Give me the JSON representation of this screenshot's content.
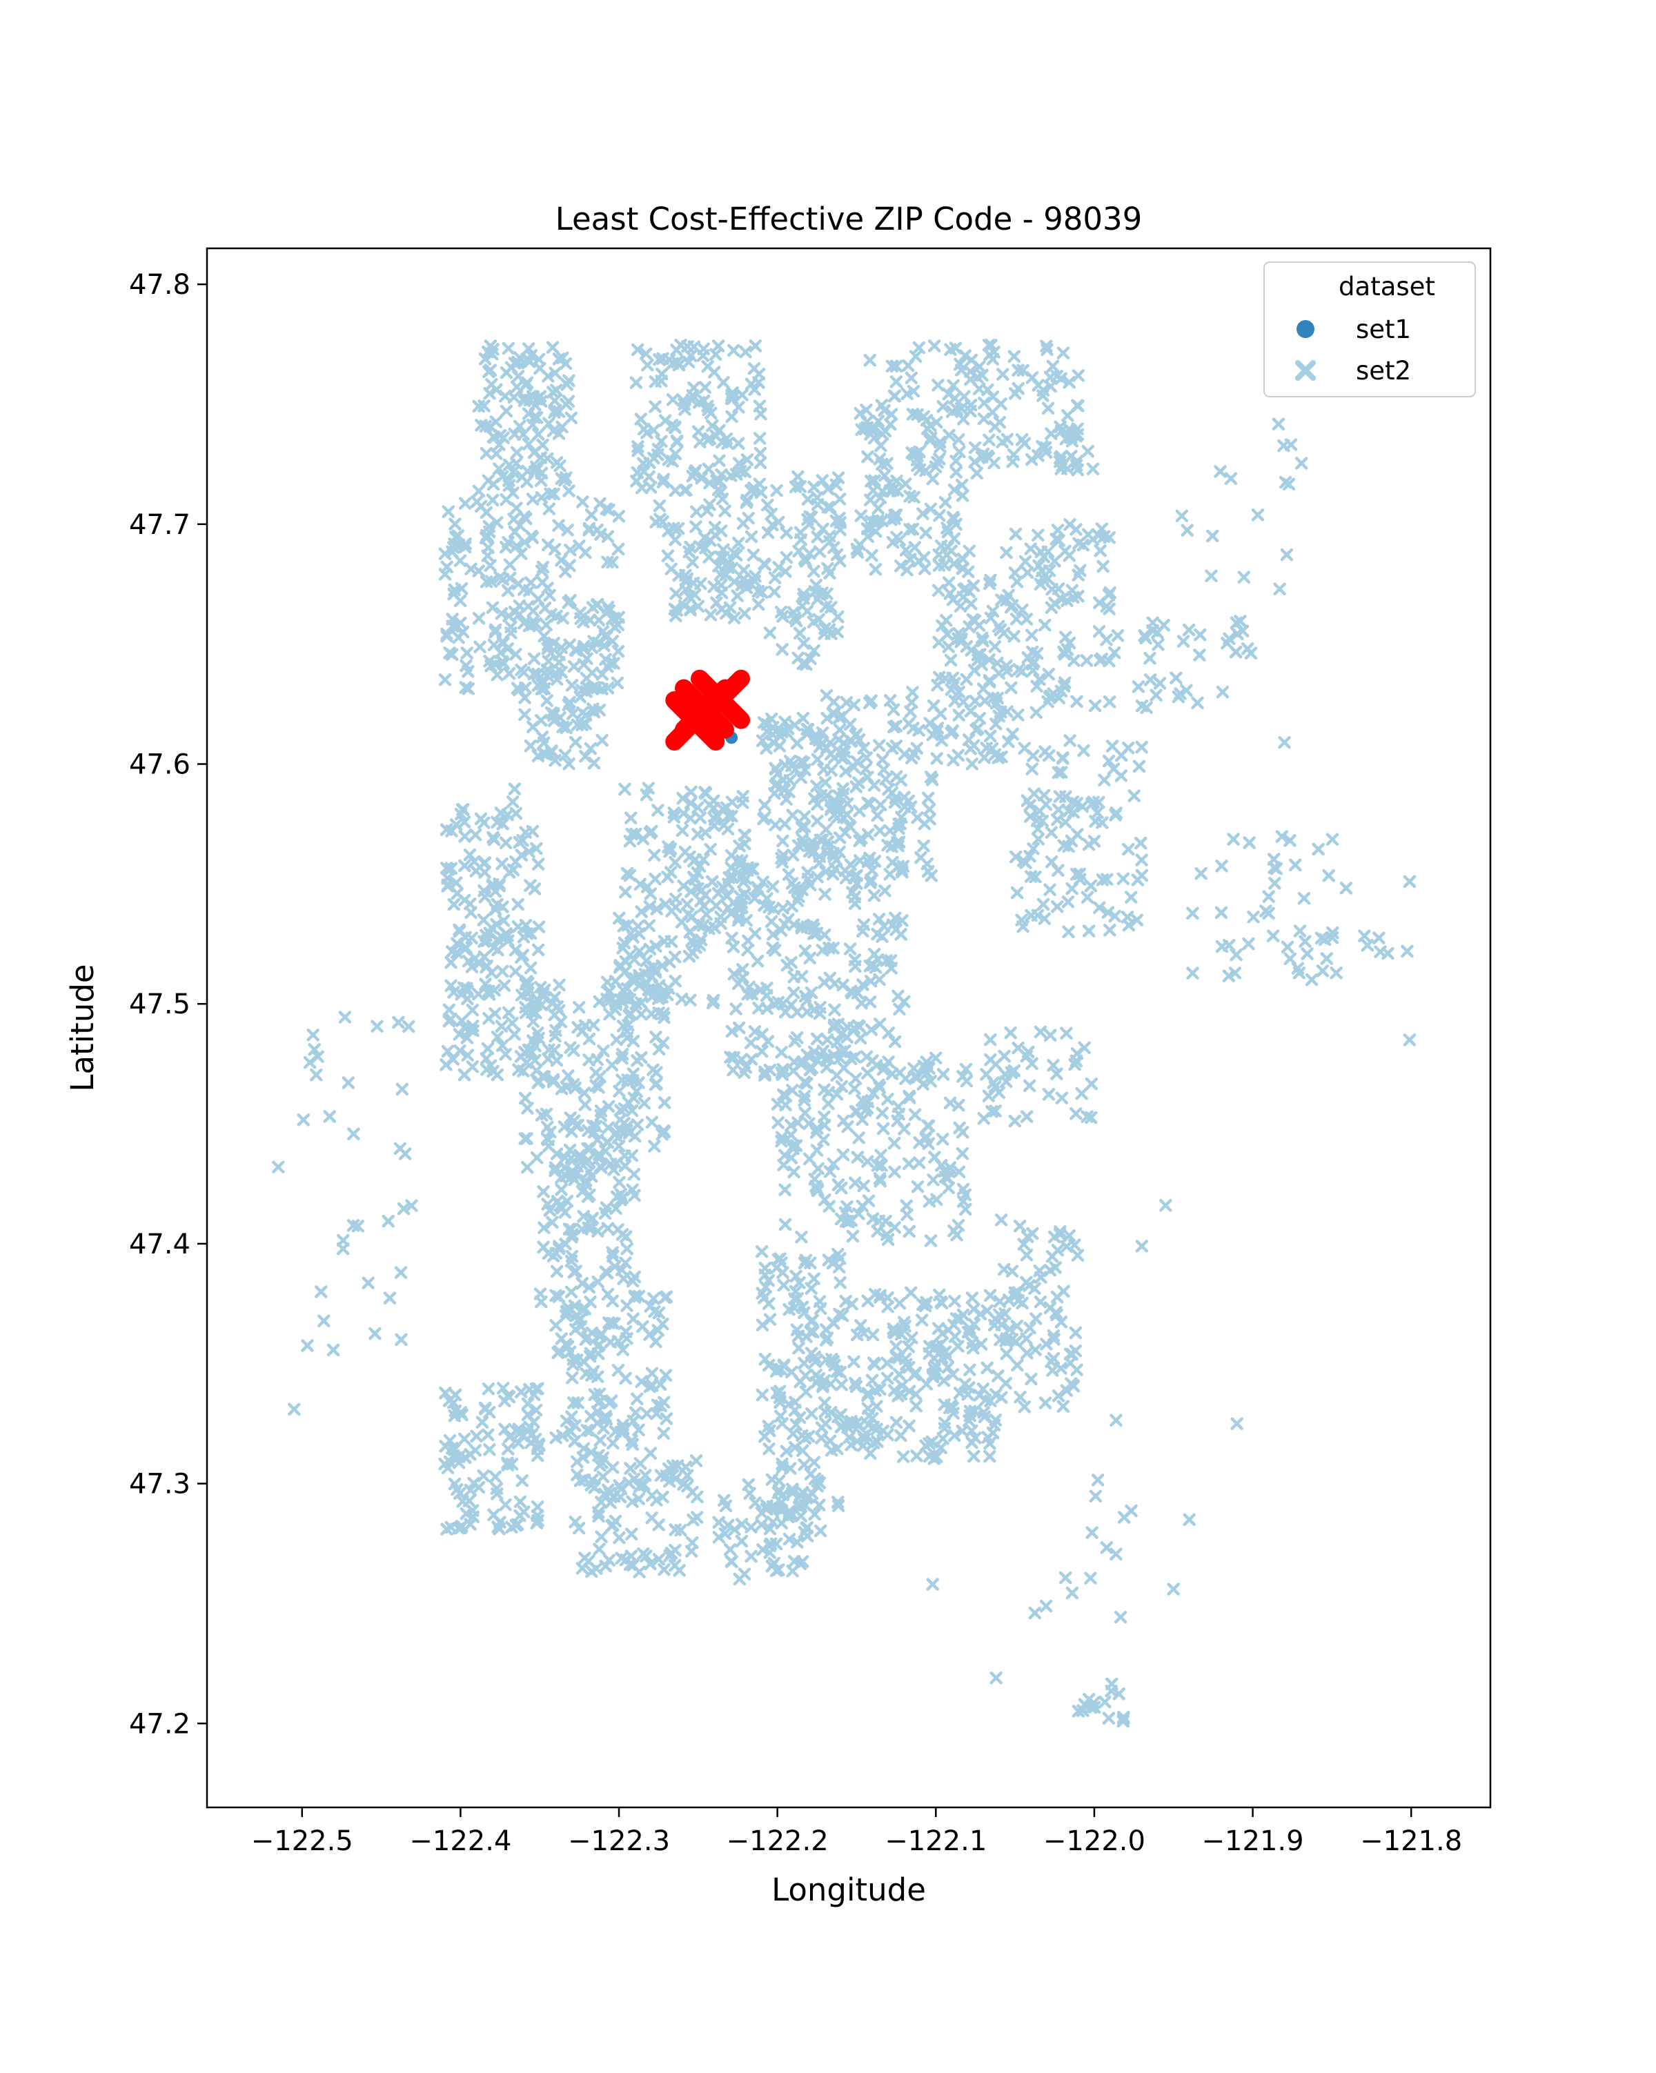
{
  "chart_data": {
    "type": "scatter",
    "title": "Least Cost-Effective ZIP Code - 98039",
    "xlabel": "Longitude",
    "ylabel": "Latitude",
    "xlim": [
      -122.56,
      -121.75
    ],
    "ylim": [
      47.165,
      47.815
    ],
    "xticks": [
      -122.5,
      -122.4,
      -122.3,
      -122.2,
      -122.1,
      -122.0,
      -121.9,
      -121.8
    ],
    "xtick_labels": [
      "−122.5",
      "−122.4",
      "−122.3",
      "−122.2",
      "−122.1",
      "−122.0",
      "−121.9",
      "−121.8"
    ],
    "yticks": [
      47.2,
      47.3,
      47.4,
      47.5,
      47.6,
      47.7,
      47.8
    ],
    "ytick_labels": [
      "47.2",
      "47.3",
      "47.4",
      "47.5",
      "47.6",
      "47.7",
      "47.8"
    ],
    "grid": false,
    "legend": {
      "title": "dataset",
      "position": "top-right",
      "entries": [
        {
          "label": "set1",
          "marker": "circle",
          "color": "#3182bd"
        },
        {
          "label": "set2",
          "marker": "x",
          "color": "#a6cee3"
        }
      ]
    },
    "series": [
      {
        "name": "set1",
        "marker": "circle",
        "color": "#3182bd",
        "points": [
          [
            -122.229,
            47.611
          ],
          [
            -122.236,
            47.616
          ],
          [
            -122.241,
            47.619
          ]
        ]
      },
      {
        "name": "set2",
        "marker": "x",
        "color": "#a6cee3",
        "regions": [
          {
            "x": [
              -122.39,
              -122.33
            ],
            "y": [
              47.71,
              47.775
            ],
            "n": 120
          },
          {
            "x": [
              -122.41,
              -122.3
            ],
            "y": [
              47.63,
              47.71
            ],
            "n": 200
          },
          {
            "x": [
              -122.36,
              -122.31
            ],
            "y": [
              47.6,
              47.65
            ],
            "n": 60
          },
          {
            "x": [
              -122.29,
              -122.21
            ],
            "y": [
              47.7,
              47.775
            ],
            "n": 140
          },
          {
            "x": [
              -122.27,
              -122.21
            ],
            "y": [
              47.66,
              47.7
            ],
            "n": 70
          },
          {
            "x": [
              -122.21,
              -122.16
            ],
            "y": [
              47.64,
              47.72
            ],
            "n": 90
          },
          {
            "x": [
              -122.15,
              -122.08
            ],
            "y": [
              47.68,
              47.775
            ],
            "n": 150
          },
          {
            "x": [
              -122.08,
              -122.01
            ],
            "y": [
              47.72,
              47.775
            ],
            "n": 80
          },
          {
            "x": [
              -122.1,
              -122.05
            ],
            "y": [
              47.6,
              47.69
            ],
            "n": 110
          },
          {
            "x": [
              -122.05,
              -121.99
            ],
            "y": [
              47.62,
              47.7
            ],
            "n": 90
          },
          {
            "x": [
              -122.17,
              -122.1
            ],
            "y": [
              47.55,
              47.63
            ],
            "n": 130
          },
          {
            "x": [
              -122.21,
              -122.16
            ],
            "y": [
              47.56,
              47.62
            ],
            "n": 90
          },
          {
            "x": [
              -122.05,
              -121.97
            ],
            "y": [
              47.53,
              47.61
            ],
            "n": 100
          },
          {
            "x": [
              -122.41,
              -122.35
            ],
            "y": [
              47.47,
              47.59
            ],
            "n": 180
          },
          {
            "x": [
              -122.3,
              -122.24
            ],
            "y": [
              47.5,
              47.59
            ],
            "n": 110
          },
          {
            "x": [
              -122.26,
              -122.22
            ],
            "y": [
              47.53,
              47.59
            ],
            "n": 60
          },
          {
            "x": [
              -122.36,
              -122.29
            ],
            "y": [
              47.43,
              47.51
            ],
            "n": 120
          },
          {
            "x": [
              -122.3,
              -122.27
            ],
            "y": [
              47.44,
              47.53
            ],
            "n": 50
          },
          {
            "x": [
              -122.23,
              -122.12
            ],
            "y": [
              47.47,
              47.56
            ],
            "n": 200
          },
          {
            "x": [
              -122.2,
              -122.08
            ],
            "y": [
              47.4,
              47.48
            ],
            "n": 180
          },
          {
            "x": [
              -122.35,
              -122.29
            ],
            "y": [
              47.37,
              47.45
            ],
            "n": 110
          },
          {
            "x": [
              -122.34,
              -122.27
            ],
            "y": [
              47.31,
              47.38
            ],
            "n": 120
          },
          {
            "x": [
              -122.21,
              -122.16
            ],
            "y": [
              47.28,
              47.4
            ],
            "n": 150
          },
          {
            "x": [
              -122.16,
              -122.06
            ],
            "y": [
              47.31,
              47.38
            ],
            "n": 180
          },
          {
            "x": [
              -122.06,
              -122.01
            ],
            "y": [
              47.33,
              47.41
            ],
            "n": 80
          },
          {
            "x": [
              -122.41,
              -122.35
            ],
            "y": [
              47.28,
              47.34
            ],
            "n": 100
          },
          {
            "x": [
              -122.33,
              -122.25
            ],
            "y": [
              47.26,
              47.31
            ],
            "n": 90
          },
          {
            "x": [
              -122.24,
              -122.18
            ],
            "y": [
              47.26,
              47.3
            ],
            "n": 50
          },
          {
            "x": [
              -122.07,
              -122.0
            ],
            "y": [
              47.45,
              47.49
            ],
            "n": 40
          },
          {
            "x": [
              -121.99,
              -121.93
            ],
            "y": [
              47.62,
              47.66
            ],
            "n": 25
          },
          {
            "x": [
              -121.92,
              -121.9
            ],
            "y": [
              47.64,
              47.66
            ],
            "n": 10
          },
          {
            "x": [
              -121.94,
              -121.84
            ],
            "y": [
              47.51,
              47.57
            ],
            "n": 45
          },
          {
            "x": [
              -121.83,
              -121.8
            ],
            "y": [
              47.52,
              47.53
            ],
            "n": 6
          },
          {
            "x": [
              -122.01,
              -121.98
            ],
            "y": [
              47.2,
              47.22
            ],
            "n": 15
          },
          {
            "x": [
              -122.5,
              -122.43
            ],
            "y": [
              47.35,
              47.5
            ],
            "n": 30
          },
          {
            "x": [
              -121.95,
              -121.86
            ],
            "y": [
              47.67,
              47.745
            ],
            "n": 16
          },
          {
            "x": [
              -122.03,
              -122.0
            ],
            "y": [
              47.72,
              47.74
            ],
            "n": 10
          },
          {
            "x": [
              -122.04,
              -121.97
            ],
            "y": [
              47.24,
              47.33
            ],
            "n": 14
          }
        ],
        "points": [
          [
            -122.515,
            47.432
          ],
          [
            -122.505,
            47.331
          ],
          [
            -122.49,
            47.478
          ],
          [
            -122.488,
            47.38
          ],
          [
            -121.801,
            47.485
          ],
          [
            -121.801,
            47.551
          ],
          [
            -121.94,
            47.285
          ],
          [
            -121.95,
            47.256
          ],
          [
            -122.062,
            47.219
          ],
          [
            -122.102,
            47.258
          ],
          [
            -121.88,
            47.609
          ],
          [
            -121.919,
            47.63
          ],
          [
            -121.97,
            47.399
          ],
          [
            -121.955,
            47.416
          ],
          [
            -121.91,
            47.325
          ]
        ]
      },
      {
        "name": "",
        "marker": "large-x",
        "color": "#ff0000",
        "points": [
          [
            -122.252,
            47.618
          ],
          [
            -122.236,
            47.627
          ],
          [
            -122.246,
            47.623
          ]
        ]
      }
    ]
  }
}
